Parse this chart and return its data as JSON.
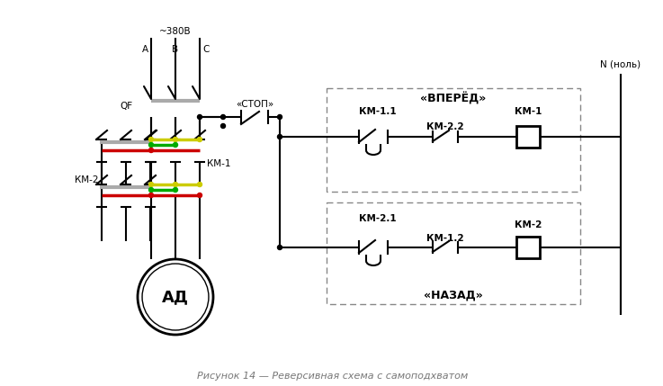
{
  "title": "Рисунок 14 — Реверсивная схема с самоподхватом",
  "bg_color": "#ffffff",
  "line_color": "#000000",
  "gray_color": "#aaaaaa",
  "lw": 1.5,
  "lw2": 2.0,
  "labels": {
    "voltage": "~380В",
    "A": "А",
    "B": "В",
    "C": "С",
    "QF": "QF",
    "KM2_left": "КМ-2",
    "KM1_right": "КМ-1",
    "STOP": "«СТОП»",
    "VPERED": "«ВПЕРЁД»",
    "NAZAD": "«НАЗАД»",
    "KM11": "КМ-1.1",
    "KM22": "КМ-2.2",
    "KM1box": "КМ-1",
    "KM21": "КМ-2.1",
    "KM12": "КМ-1.2",
    "KM2box": "КМ-2",
    "AD": "АД",
    "N": "N (ноль)"
  }
}
